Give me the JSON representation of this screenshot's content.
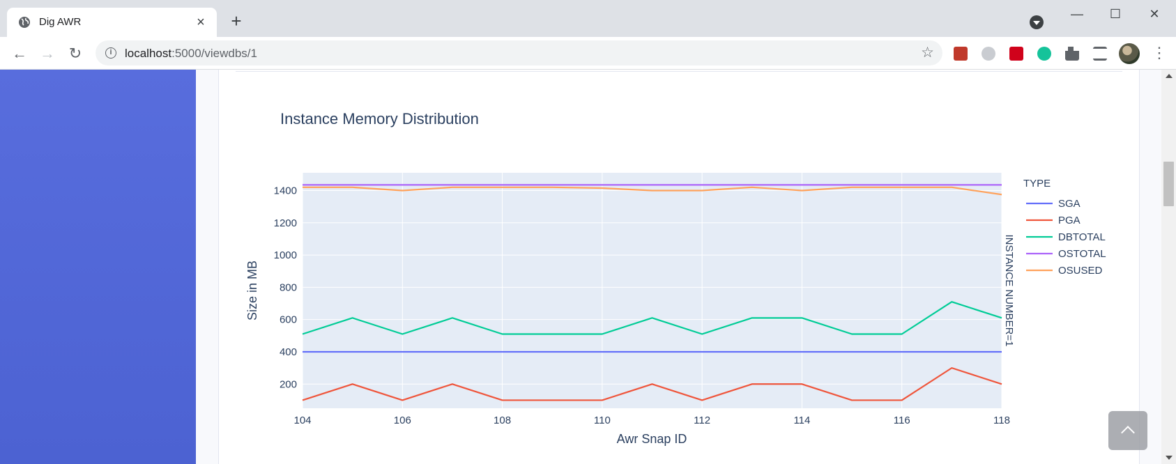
{
  "browser": {
    "tab_title": "Dig AWR",
    "url_host": "localhost",
    "url_path": ":5000/viewdbs/1"
  },
  "chart_data": {
    "type": "line",
    "title": "Instance Memory Distribution",
    "xlabel": "Awr Snap ID",
    "ylabel": "Size in MB",
    "legend_title": "TYPE",
    "facet_label": "INSTANCE NUMBER=1",
    "xlim": [
      104,
      118
    ],
    "ylim": [
      50,
      1510
    ],
    "x_ticks": [
      104,
      106,
      108,
      110,
      112,
      114,
      116,
      118
    ],
    "y_ticks": [
      200,
      400,
      600,
      800,
      1000,
      1200,
      1400
    ],
    "legend_position": "right",
    "grid": true,
    "x": [
      104,
      105,
      106,
      107,
      108,
      109,
      110,
      111,
      112,
      113,
      114,
      115,
      116,
      117,
      118
    ],
    "series": [
      {
        "name": "SGA",
        "color": "#636efa",
        "values": [
          400,
          400,
          400,
          400,
          400,
          400,
          400,
          400,
          400,
          400,
          400,
          400,
          400,
          400,
          400
        ]
      },
      {
        "name": "PGA",
        "color": "#ef553b",
        "values": [
          100,
          200,
          100,
          200,
          100,
          100,
          100,
          200,
          100,
          200,
          200,
          100,
          100,
          300,
          200
        ]
      },
      {
        "name": "DBTOTAL",
        "color": "#00cc96",
        "values": [
          510,
          610,
          510,
          610,
          510,
          510,
          510,
          610,
          510,
          610,
          610,
          510,
          510,
          710,
          610
        ]
      },
      {
        "name": "OSTOTAL",
        "color": "#ab63fa",
        "values": [
          1435,
          1435,
          1435,
          1435,
          1435,
          1435,
          1435,
          1435,
          1435,
          1435,
          1435,
          1435,
          1435,
          1435,
          1435
        ]
      },
      {
        "name": "OSUSED",
        "color": "#ffa15a",
        "values": [
          1420,
          1420,
          1400,
          1420,
          1420,
          1420,
          1415,
          1400,
          1400,
          1420,
          1400,
          1420,
          1420,
          1420,
          1375
        ]
      }
    ]
  }
}
